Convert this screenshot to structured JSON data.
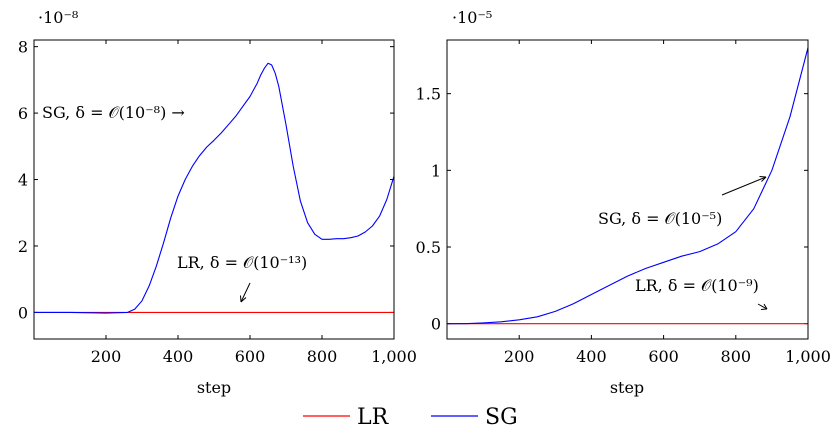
{
  "chart_data": [
    {
      "type": "line",
      "title": "",
      "xlabel": "step",
      "ylabel": "",
      "scale_label": "·10⁻⁸",
      "xlim": [
        0,
        1000
      ],
      "ylim": [
        -0.8,
        8.2
      ],
      "xticks": [
        200,
        400,
        600,
        800,
        1000
      ],
      "xtick_labels": [
        "200",
        "400",
        "600",
        "800",
        "1,000"
      ],
      "yticks": [
        0,
        2,
        4,
        6,
        8
      ],
      "ytick_labels": [
        "0",
        "2",
        "4",
        "6",
        "8"
      ],
      "grid": false,
      "series": [
        {
          "name": "LR",
          "color": "#ff0000",
          "x": [
            0,
            1000
          ],
          "y": [
            0,
            0
          ]
        },
        {
          "name": "SG",
          "color": "#0000ff",
          "x": [
            0,
            100,
            200,
            260,
            280,
            300,
            320,
            340,
            360,
            380,
            400,
            420,
            440,
            460,
            480,
            500,
            520,
            540,
            560,
            580,
            600,
            620,
            630,
            640,
            650,
            660,
            670,
            680,
            700,
            720,
            740,
            760,
            780,
            800,
            820,
            840,
            860,
            880,
            900,
            920,
            940,
            960,
            980,
            1000
          ],
          "y": [
            0,
            0,
            -0.02,
            0,
            0.1,
            0.35,
            0.8,
            1.4,
            2.1,
            2.85,
            3.5,
            4.0,
            4.4,
            4.72,
            4.98,
            5.18,
            5.4,
            5.65,
            5.9,
            6.2,
            6.5,
            6.9,
            7.15,
            7.35,
            7.5,
            7.45,
            7.2,
            6.8,
            5.65,
            4.4,
            3.35,
            2.7,
            2.35,
            2.2,
            2.2,
            2.22,
            2.22,
            2.25,
            2.3,
            2.42,
            2.6,
            2.9,
            3.4,
            4.1
          ]
        }
      ],
      "annotations": [
        {
          "text": "SG, δ = 𝒪(10⁻⁸) →",
          "x": 20,
          "y": 6
        },
        {
          "text": "LR, δ = 𝒪(10⁻¹³)",
          "x": 410,
          "y": 1.5
        }
      ]
    },
    {
      "type": "line",
      "title": "",
      "xlabel": "step",
      "ylabel": "",
      "scale_label": "·10⁻⁵",
      "xlim": [
        0,
        1000
      ],
      "ylim": [
        -0.1,
        1.85
      ],
      "xticks": [
        200,
        400,
        600,
        800,
        1000
      ],
      "xtick_labels": [
        "200",
        "400",
        "600",
        "800",
        "1,000"
      ],
      "yticks": [
        0,
        0.5,
        1,
        1.5
      ],
      "ytick_labels": [
        "0",
        "0.5",
        "1",
        "1.5"
      ],
      "grid": false,
      "series": [
        {
          "name": "LR",
          "color": "#ff0000",
          "x": [
            0,
            1000
          ],
          "y": [
            0,
            0
          ]
        },
        {
          "name": "SG",
          "color": "#0000ff",
          "x": [
            0,
            50,
            100,
            150,
            200,
            250,
            300,
            350,
            400,
            450,
            500,
            550,
            600,
            650,
            700,
            750,
            800,
            850,
            900,
            950,
            1000
          ],
          "y": [
            0,
            0,
            0.005,
            0.012,
            0.025,
            0.045,
            0.08,
            0.13,
            0.19,
            0.25,
            0.31,
            0.36,
            0.4,
            0.44,
            0.47,
            0.52,
            0.6,
            0.75,
            1.0,
            1.35,
            1.8
          ]
        }
      ],
      "annotations": [
        {
          "text": "SG, δ = 𝒪(10⁻⁵)",
          "x": 600,
          "y": 0.68
        },
        {
          "text": "LR, δ = 𝒪(10⁻⁹)",
          "x": 680,
          "y": 0.15
        }
      ]
    }
  ],
  "legend": {
    "placement": "bottom-center",
    "entries": [
      {
        "label": "LR",
        "color": "#ff0000"
      },
      {
        "label": "SG",
        "color": "#0000ff"
      }
    ]
  }
}
